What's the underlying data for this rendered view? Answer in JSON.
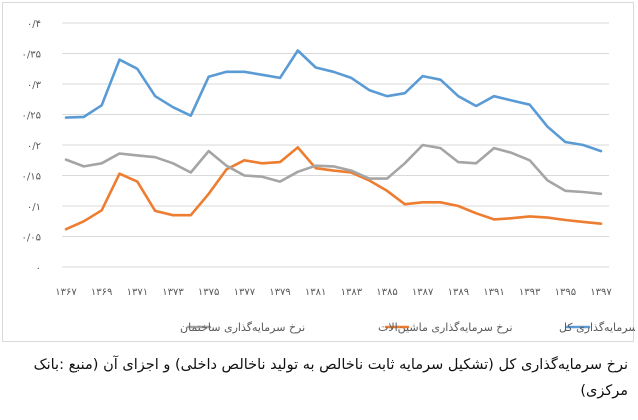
{
  "chart_data": {
    "type": "line",
    "title": "",
    "xlabel": "",
    "ylabel": "",
    "ylim": [
      0,
      0.4
    ],
    "yticks": [
      0,
      0.05,
      0.1,
      0.15,
      0.2,
      0.25,
      0.3,
      0.35,
      0.4
    ],
    "ytick_labels": [
      "۰",
      "۰/۰۵",
      "۰/۱",
      "۰/۱۵",
      "۰/۲",
      "۰/۲۵",
      "۰/۳",
      "۰/۳۵",
      "۰/۴"
    ],
    "grid": true,
    "legend_position": "bottom",
    "x": [
      1367,
      1368,
      1369,
      1370,
      1371,
      1372,
      1373,
      1374,
      1375,
      1376,
      1377,
      1378,
      1379,
      1380,
      1381,
      1382,
      1383,
      1384,
      1385,
      1386,
      1387,
      1388,
      1389,
      1390,
      1391,
      1392,
      1393,
      1394,
      1395,
      1396,
      1397
    ],
    "x_tick_labels": [
      "۱۳۶۷",
      "",
      "۱۳۶۹",
      "",
      "۱۳۷۱",
      "",
      "۱۳۷۳",
      "",
      "۱۳۷۵",
      "",
      "۱۳۷۷",
      "",
      "۱۳۷۹",
      "",
      "۱۳۸۱",
      "",
      "۱۳۸۳",
      "",
      "۱۳۸۵",
      "",
      "۱۳۸۷",
      "",
      "۱۳۸۹",
      "",
      "۱۳۹۱",
      "",
      "۱۳۹۳",
      "",
      "۱۳۹۵",
      "",
      "۱۳۹۷"
    ],
    "series": [
      {
        "name": "نرخ سرمایه‌گذاری کل",
        "color": "#5b9bd5",
        "values": [
          0.245,
          0.246,
          0.265,
          0.34,
          0.325,
          0.28,
          0.262,
          0.248,
          0.312,
          0.32,
          0.32,
          0.315,
          0.31,
          0.355,
          0.327,
          0.32,
          0.31,
          0.29,
          0.28,
          0.285,
          0.313,
          0.307,
          0.28,
          0.264,
          0.28,
          0.273,
          0.266,
          0.23,
          0.205,
          0.2,
          0.19
        ]
      },
      {
        "name": "نرخ سرمایه‌گذاری ماشین‌الات",
        "color": "#ed7d31",
        "values": [
          0.062,
          0.075,
          0.093,
          0.153,
          0.14,
          0.092,
          0.085,
          0.085,
          0.12,
          0.16,
          0.175,
          0.17,
          0.172,
          0.196,
          0.162,
          0.158,
          0.155,
          0.142,
          0.125,
          0.103,
          0.106,
          0.106,
          0.1,
          0.088,
          0.078,
          0.08,
          0.083,
          0.081,
          0.077,
          0.074,
          0.071
        ]
      },
      {
        "name": "نرخ سرمایه‌گذاری ساختمان",
        "color": "#a5a5a5",
        "values": [
          0.176,
          0.165,
          0.17,
          0.186,
          0.183,
          0.18,
          0.17,
          0.155,
          0.19,
          0.166,
          0.15,
          0.148,
          0.14,
          0.156,
          0.166,
          0.165,
          0.158,
          0.145,
          0.145,
          0.17,
          0.2,
          0.195,
          0.172,
          0.17,
          0.195,
          0.187,
          0.175,
          0.142,
          0.125,
          0.123,
          0.12
        ]
      }
    ]
  },
  "caption": "نرخ سرمایه‌گذاری کل (تشکیل سرمایه ثابت ناخالص به تولید ناخالص داخلی) و اجزای آن (منبع :بانک مرکزی)"
}
